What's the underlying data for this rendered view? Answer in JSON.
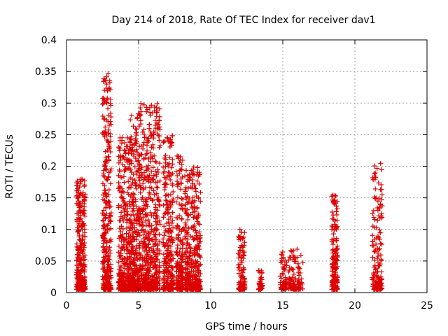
{
  "chart_data": {
    "type": "scatter",
    "title": "Day 214 of 2018, Rate Of TEC Index for receiver dav1",
    "xlabel": "GPS time / hours",
    "ylabel": "ROTI / TECUs",
    "xlim": [
      0,
      25
    ],
    "ylim": [
      0,
      0.4
    ],
    "xticks": [
      "0",
      "5",
      "10",
      "15",
      "20",
      "25"
    ],
    "xtick_values": [
      0,
      5,
      10,
      15,
      20,
      25
    ],
    "yticks": [
      "0",
      "0.05",
      "0.1",
      "0.15",
      "0.2",
      "0.25",
      "0.3",
      "0.35",
      "0.4"
    ],
    "ytick_values": [
      0,
      0.05,
      0.1,
      0.15,
      0.2,
      0.25,
      0.3,
      0.35,
      0.4
    ],
    "grid": true,
    "marker": "plus",
    "marker_color": "#dd0000",
    "clusters": [
      {
        "x": [
          0.7,
          1.3
        ],
        "ymax": 0.18,
        "density": 320
      },
      {
        "x": [
          2.5,
          3.1
        ],
        "ymax": 0.35,
        "density": 320
      },
      {
        "x": [
          3.6,
          4.4
        ],
        "ymax": 0.25,
        "density": 340
      },
      {
        "x": [
          4.4,
          5.1
        ],
        "ymax": 0.29,
        "density": 340
      },
      {
        "x": [
          5.1,
          6.5
        ],
        "ymax": 0.3,
        "density": 520
      },
      {
        "x": [
          6.7,
          7.4
        ],
        "ymax": 0.25,
        "density": 280
      },
      {
        "x": [
          7.6,
          8.1
        ],
        "ymax": 0.22,
        "density": 180
      },
      {
        "x": [
          8.2,
          9.3
        ],
        "ymax": 0.2,
        "density": 360
      },
      {
        "x": [
          11.9,
          12.4
        ],
        "ymax": 0.1,
        "density": 110
      },
      {
        "x": [
          13.3,
          13.6
        ],
        "ymax": 0.035,
        "density": 40
      },
      {
        "x": [
          14.8,
          15.3
        ],
        "ymax": 0.065,
        "density": 60
      },
      {
        "x": [
          15.4,
          16.4
        ],
        "ymax": 0.07,
        "density": 100
      },
      {
        "x": [
          18.4,
          18.8
        ],
        "ymax": 0.155,
        "density": 180
      },
      {
        "x": [
          21.2,
          21.9
        ],
        "ymax": 0.205,
        "density": 160
      }
    ]
  }
}
